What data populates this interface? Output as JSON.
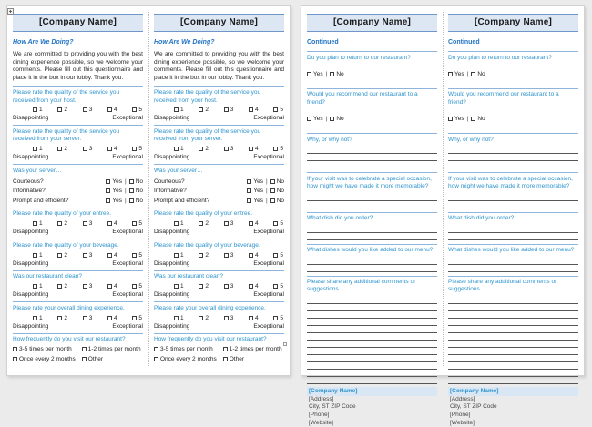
{
  "colors": {
    "workspace_background": "#ebebeb",
    "page_background": "#ffffff",
    "header_fill": "#dce7f3",
    "header_border": "#6e96c8",
    "heading_text": "#2273c4",
    "question_text": "#2d93ce",
    "section_rule": "#8fb4dc",
    "answer_line": "#565656",
    "footer_fill": "#d9e7f4"
  },
  "survey_column": {
    "header": "[Company Name]",
    "heading": "How Are We Doing?",
    "intro": "We are committed to providing you with the best dining experience possible, so we welcome your comments. Please fill out this questionnaire and place it in the box in our lobby. Thank you.",
    "scale_options": [
      "1",
      "2",
      "3",
      "4",
      "5"
    ],
    "scale_low": "Disappointing",
    "scale_high": "Exceptional",
    "yes_label": "Yes",
    "no_label": "No",
    "divider": "|",
    "ratings": [
      {
        "question": "Please rate the quality of the service you received from your host."
      },
      {
        "question": "Please rate the quality of the service you received from your server."
      },
      {
        "question": "Please rate the quality of your entree."
      },
      {
        "question": "Please rate the quality of your beverage."
      },
      {
        "question": "Was our restaurant clean?"
      },
      {
        "question": "Please rate your overall dining experience."
      }
    ],
    "server_section": {
      "question": "Was your server…",
      "items": [
        "Courteous?",
        "Informative?",
        "Prompt and efficient?"
      ]
    },
    "frequency_section": {
      "question": "How frequently do you visit our restaurant?",
      "options": [
        "3-5 times per month",
        "1-2 times per month",
        "Once every 2 months",
        "Other"
      ]
    }
  },
  "continued_column": {
    "header": "[Company Name]",
    "heading": "Continued",
    "yes_label": "Yes",
    "no_label": "No",
    "divider": "|",
    "yesno_questions": [
      {
        "question": "Do you plan to return to our restaurant?"
      },
      {
        "question": "Would you recommend our restaurant to a friend?"
      }
    ],
    "open_questions": [
      {
        "question": "Why, or why not?"
      },
      {
        "question": "If your visit was to celebrate a special occasion, how might we have made it more memorable?"
      },
      {
        "question": "What dish did you order?"
      },
      {
        "question": "What dishes would you like added to our menu?"
      },
      {
        "question": "Please share any additional comments or suggestions."
      }
    ],
    "footer": {
      "company": "[Company Name]",
      "address": "[Address]",
      "city": "City, ST  ZIP Code",
      "phone": "[Phone]",
      "website": "[Website]"
    }
  }
}
